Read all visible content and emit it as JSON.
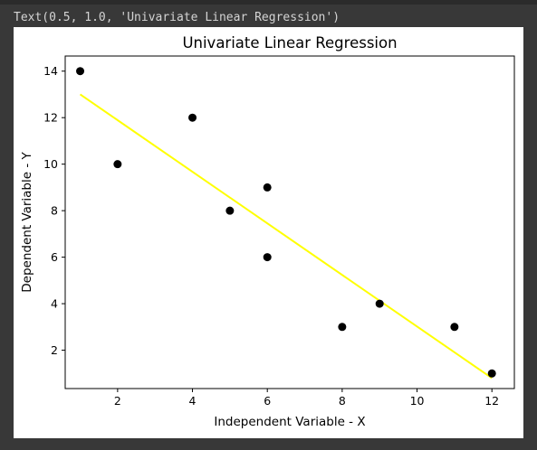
{
  "output": {
    "repr_text": "Text(0.5, 1.0, 'Univariate Linear Regression')"
  },
  "chart_data": {
    "type": "scatter",
    "title": "Univariate Linear Regression",
    "xlabel": "Independent Variable - X",
    "ylabel": "Dependent Variable - Y",
    "xlim": [
      0.6,
      12.6
    ],
    "ylim": [
      0.35,
      14.65
    ],
    "xticks": [
      2,
      4,
      6,
      8,
      10,
      12
    ],
    "yticks": [
      2,
      4,
      6,
      8,
      10,
      12,
      14
    ],
    "grid": false,
    "legend": "none",
    "series": [
      {
        "kind": "scatter",
        "color": "#000000",
        "points": [
          {
            "x": 1,
            "y": 14
          },
          {
            "x": 2,
            "y": 10
          },
          {
            "x": 4,
            "y": 12
          },
          {
            "x": 5,
            "y": 8
          },
          {
            "x": 6,
            "y": 9
          },
          {
            "x": 6,
            "y": 6
          },
          {
            "x": 8,
            "y": 3
          },
          {
            "x": 9,
            "y": 4
          },
          {
            "x": 11,
            "y": 3
          },
          {
            "x": 12,
            "y": 1
          }
        ]
      },
      {
        "kind": "line",
        "color": "#ffff00",
        "points": [
          {
            "x": 1,
            "y": 13.0
          },
          {
            "x": 12,
            "y": 0.8
          }
        ]
      }
    ]
  }
}
